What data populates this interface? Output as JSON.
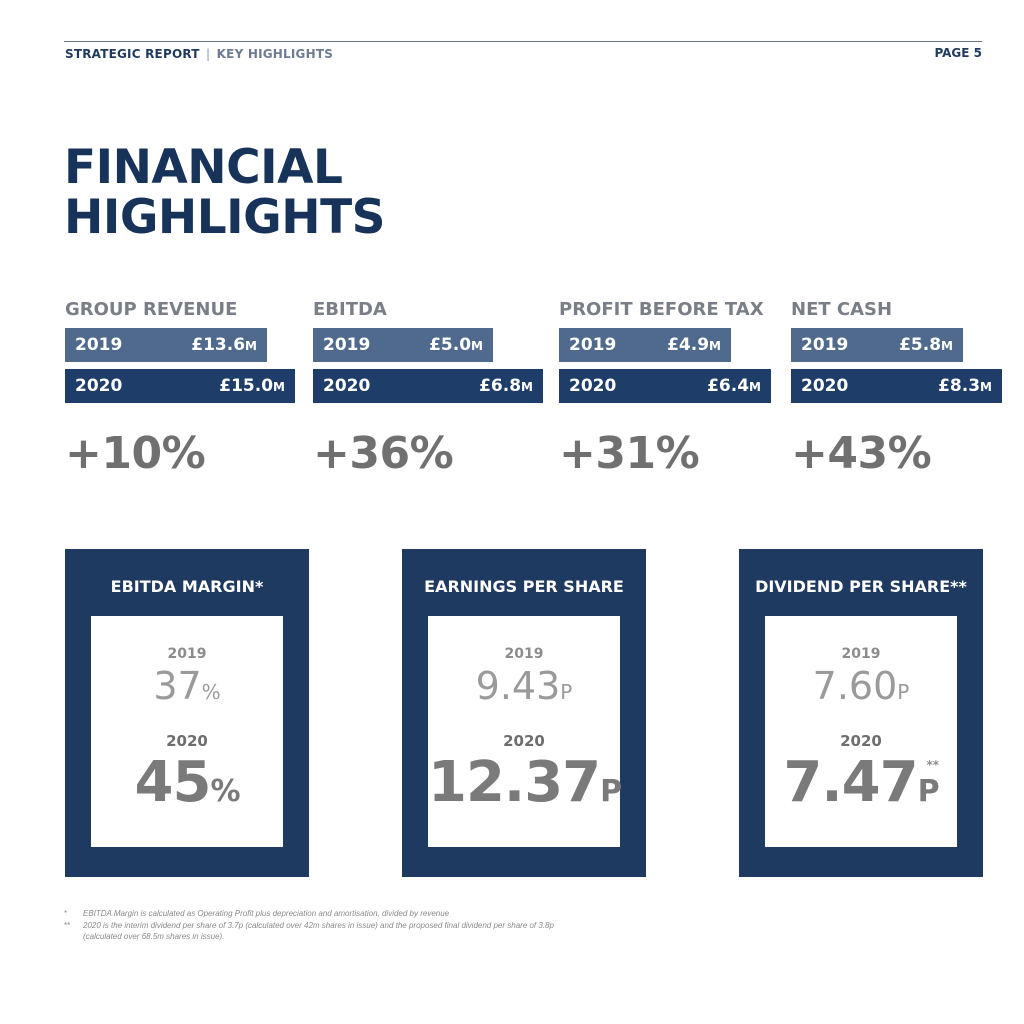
{
  "header": {
    "section": "STRATEGIC REPORT",
    "separator": "|",
    "subsection": "KEY HIGHLIGHTS",
    "page": "PAGE 5"
  },
  "title": {
    "line1": "FINANCIAL",
    "line2": "HIGHLIGHTS"
  },
  "metrics": [
    {
      "label": "GROUP REVENUE",
      "y2019": "2019",
      "v2019": "£13.6",
      "y2020": "2020",
      "v2020": "£15.0",
      "unit": "M",
      "change": "+10%"
    },
    {
      "label": "EBITDA",
      "y2019": "2019",
      "v2019": "£5.0",
      "y2020": "2020",
      "v2020": "£6.8",
      "unit": "M",
      "change": "+36%"
    },
    {
      "label": "PROFIT BEFORE TAX",
      "y2019": "2019",
      "v2019": "£4.9",
      "y2020": "2020",
      "v2020": "£6.4",
      "unit": "M",
      "change": "+31%"
    },
    {
      "label": "NET CASH",
      "y2019": "2019",
      "v2019": "£5.8",
      "y2020": "2020",
      "v2020": "£8.3",
      "unit": "M",
      "change": "+43%"
    }
  ],
  "cards": [
    {
      "title": "EBITDA MARGIN*",
      "y2019": "2019",
      "v2019": "37",
      "u2019": "%",
      "y2020": "2020",
      "v2020": "45",
      "u2020": "%",
      "stars": ""
    },
    {
      "title": "EARNINGS PER SHARE",
      "y2019": "2019",
      "v2019": "9.43",
      "u2019": "P",
      "y2020": "2020",
      "v2020": "12.37",
      "u2020": "P",
      "stars": ""
    },
    {
      "title": "DIVIDEND PER SHARE**",
      "y2019": "2019",
      "v2019": "7.60",
      "u2019": "P",
      "y2020": "2020",
      "v2020": "7.47",
      "u2020": "P",
      "stars": "**"
    }
  ],
  "footnotes": [
    {
      "mark": "*",
      "text": "EBITDA Margin is calculated as Operating Profit plus depreciation and amortisation, divided by revenue"
    },
    {
      "mark": "**",
      "text": "2020 is the interim dividend per share of 3.7p (calculated over 42m shares in issue) and the proposed final dividend per share of 3.8p"
    },
    {
      "mark": "",
      "text": "(calculated over 68.5m shares in issue)."
    }
  ],
  "colors": {
    "navy": "#1f3a60",
    "bar_2019": "#4f6a8c",
    "bar_2020": "#1e3d68",
    "grey_text": "#707070"
  }
}
